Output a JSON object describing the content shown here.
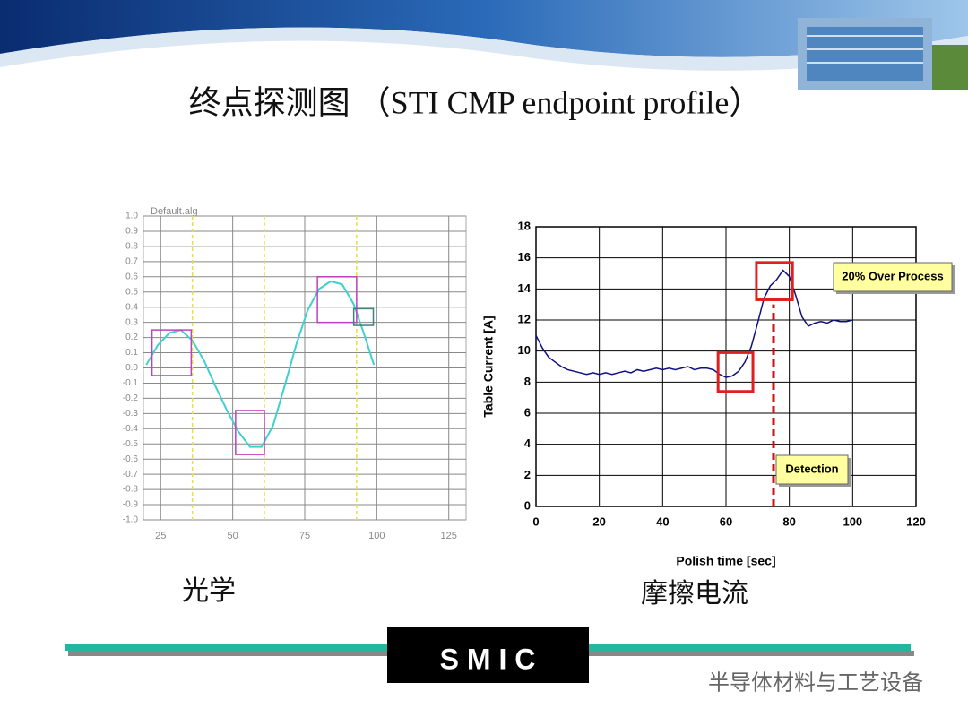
{
  "title": "终点探测图 （STI CMP endpoint profile）",
  "captions": [
    "光学",
    "摩擦电流"
  ],
  "footer": {
    "logo": "S M I C",
    "watermark": "半导体材料与工艺设备"
  },
  "chart_data": [
    {
      "type": "line",
      "title": "Default.alg",
      "color": "#40d0d0",
      "x": [
        20,
        24,
        28,
        32,
        36,
        40,
        44,
        48,
        52,
        56,
        60,
        64,
        68,
        72,
        76,
        80,
        84,
        88,
        92,
        96,
        99
      ],
      "values": [
        0.02,
        0.15,
        0.23,
        0.25,
        0.18,
        0.05,
        -0.12,
        -0.28,
        -0.42,
        -0.52,
        -0.52,
        -0.38,
        -0.12,
        0.15,
        0.38,
        0.52,
        0.57,
        0.55,
        0.42,
        0.2,
        0.02
      ],
      "xlim": [
        19,
        131
      ],
      "xticks": [
        25,
        50,
        75,
        100,
        125
      ],
      "ylim": [
        -1,
        1
      ],
      "yticks": [
        {
          "value": 1,
          "label": "1.0"
        },
        0.9,
        0.8,
        0.7,
        0.6,
        0.5,
        0.4,
        0.3,
        0.2,
        0.1,
        {
          "value": 0,
          "label": "0.0"
        },
        -0.1,
        -0.2,
        -0.3,
        -0.4,
        -0.5,
        -0.6,
        -0.7,
        -0.8,
        -0.9,
        {
          "value": -1,
          "label": "-1.0"
        }
      ],
      "grid": true,
      "vlines": [
        36,
        61,
        93
      ],
      "vline_color": "#e8e040",
      "highlight_boxes": [
        {
          "x": [
            22,
            35.6
          ],
          "y": [
            -0.05,
            0.25
          ],
          "color": "#c040c0"
        },
        {
          "x": [
            51,
            61
          ],
          "y": [
            -0.57,
            -0.28
          ],
          "color": "#c040c0"
        },
        {
          "x": [
            79.4,
            93
          ],
          "y": [
            0.3,
            0.6
          ],
          "color": "#c040c0"
        },
        {
          "x": [
            92,
            98.8
          ],
          "y": [
            0.28,
            0.39
          ],
          "color": "#408080"
        }
      ]
    },
    {
      "type": "line",
      "x_label": "Polish time [sec]",
      "y_label": "Table Current [A]",
      "color": "#101080",
      "x": [
        0,
        2,
        4,
        6,
        8,
        10,
        12,
        14,
        16,
        18,
        20,
        22,
        24,
        26,
        28,
        30,
        32,
        34,
        36,
        38,
        40,
        42,
        44,
        46,
        48,
        50,
        52,
        54,
        56,
        58,
        60,
        62,
        64,
        66,
        68,
        70,
        72,
        74,
        76,
        78,
        80,
        82,
        84,
        86,
        88,
        90,
        92,
        94,
        96,
        98,
        100
      ],
      "values": [
        11.0,
        10.2,
        9.6,
        9.3,
        9.0,
        8.8,
        8.7,
        8.6,
        8.5,
        8.6,
        8.5,
        8.6,
        8.5,
        8.6,
        8.7,
        8.6,
        8.8,
        8.7,
        8.8,
        8.9,
        8.8,
        8.9,
        8.8,
        8.9,
        9.0,
        8.8,
        8.9,
        8.9,
        8.8,
        8.5,
        8.3,
        8.4,
        8.7,
        9.3,
        10.3,
        11.8,
        13.4,
        14.2,
        14.6,
        15.2,
        14.8,
        13.6,
        12.2,
        11.6,
        11.8,
        11.9,
        11.8,
        12.0,
        11.9,
        11.9,
        12.0
      ],
      "xlim": [
        0,
        120
      ],
      "xticks": [
        0,
        20,
        40,
        60,
        80,
        100,
        120
      ],
      "ylim": [
        0,
        18
      ],
      "yticks": [
        0,
        2,
        4,
        6,
        8,
        10,
        12,
        14,
        16,
        18
      ],
      "grid": true,
      "highlight_boxes": [
        {
          "x": [
            57.5,
            68.5
          ],
          "y": [
            7.4,
            9.9
          ],
          "color": "#e02020"
        },
        {
          "x": [
            69.6,
            81
          ],
          "y": [
            13.3,
            15.7
          ],
          "color": "#e02020"
        }
      ],
      "detection_line": {
        "x": 75,
        "y": [
          0,
          13
        ],
        "color": "#d01010"
      },
      "callouts": [
        "20% Over Process",
        "Detection"
      ],
      "callout_color": "#ffffa0"
    }
  ]
}
